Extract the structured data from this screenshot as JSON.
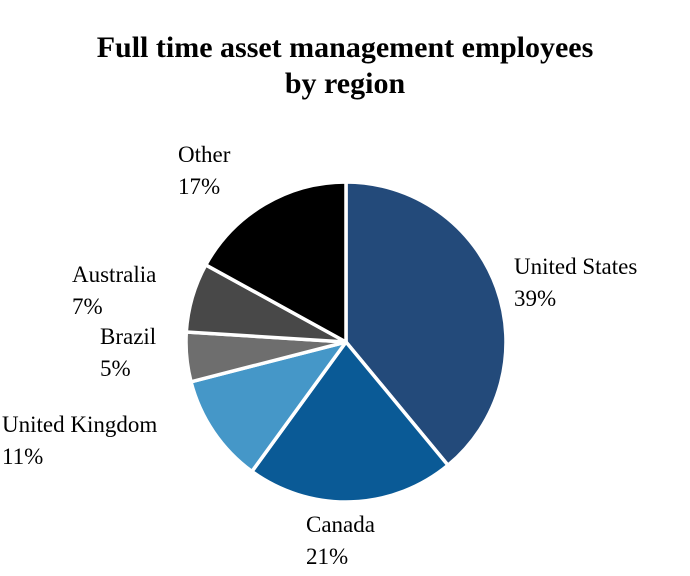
{
  "chart_data": {
    "type": "pie",
    "title_lines": [
      "Full time asset management employees",
      "by region"
    ],
    "start_angle_deg": 0,
    "direction": "clockwise",
    "slices": [
      {
        "label": "United States",
        "value_label": "39%",
        "value": 39,
        "color": "#234a7a"
      },
      {
        "label": "Canada",
        "value_label": "21%",
        "value": 21,
        "color": "#0a5a96"
      },
      {
        "label": "United Kingdom",
        "value_label": "11%",
        "value": 11,
        "color": "#4597c8"
      },
      {
        "label": "Brazil",
        "value_label": "5%",
        "value": 5,
        "color": "#6e6e6e"
      },
      {
        "label": "Australia",
        "value_label": "7%",
        "value": 7,
        "color": "#484848"
      },
      {
        "label": "Other",
        "value_label": "17%",
        "value": 17,
        "color": "#000000"
      }
    ],
    "separator_color": "#ffffff"
  }
}
